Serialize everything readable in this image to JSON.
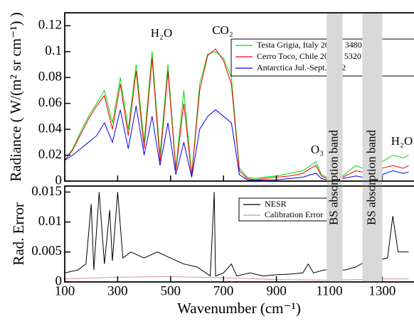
{
  "chart_data": [
    {
      "type": "line",
      "ylabel": "Radiance ( W/(m² sr cm⁻¹) )",
      "xlim": [
        100,
        1420
      ],
      "xticks": [
        100,
        300,
        500,
        700,
        900,
        1100,
        1300
      ],
      "ylim": [
        0,
        0.13
      ],
      "yticks": [
        0,
        0.02,
        0.04,
        0.06,
        0.08,
        0.1,
        0.12
      ],
      "annotations": [
        "H₂O",
        "CO₂",
        "O₃",
        "H₂O"
      ],
      "bands": [
        {
          "label": "BS absorption band",
          "range": [
            1090,
            1150
          ]
        },
        {
          "label": "BS absorption band",
          "range": [
            1225,
            1300
          ]
        }
      ],
      "x": [
        100,
        130,
        160,
        190,
        220,
        250,
        280,
        310,
        340,
        370,
        400,
        430,
        460,
        490,
        520,
        550,
        580,
        610,
        640,
        670,
        700,
        730,
        760,
        790,
        820,
        850,
        900,
        950,
        1000,
        1030,
        1050,
        1070,
        1090,
        1150,
        1200,
        1225,
        1300,
        1340,
        1380,
        1400
      ],
      "series": [
        {
          "name": "Testa Grigia, Italy 2007 - 3480 m",
          "color": "#00dd00",
          "values": [
            0.016,
            0.025,
            0.038,
            0.05,
            0.06,
            0.07,
            0.045,
            0.08,
            0.04,
            0.09,
            0.03,
            0.1,
            0.02,
            0.09,
            0.01,
            0.07,
            0.005,
            0.075,
            0.098,
            0.1,
            0.095,
            0.08,
            0.01,
            0.003,
            0.002,
            0.003,
            0.004,
            0.006,
            0.008,
            0.012,
            0.015,
            0.005,
            0.003,
            0.004,
            0.012,
            0.01,
            0.015,
            0.02,
            0.018,
            0.02
          ]
        },
        {
          "name": "Cerro Toco, Chile 2009 - 5320 m",
          "color": "#ee0000",
          "values": [
            0.016,
            0.024,
            0.036,
            0.048,
            0.058,
            0.066,
            0.04,
            0.075,
            0.035,
            0.085,
            0.025,
            0.095,
            0.015,
            0.085,
            0.008,
            0.06,
            0.004,
            0.07,
            0.097,
            0.102,
            0.093,
            0.075,
            0.008,
            0.002,
            0.001,
            0.002,
            0.003,
            0.004,
            0.006,
            0.01,
            0.012,
            0.004,
            0.002,
            0.003,
            0.008,
            0.007,
            0.01,
            0.012,
            0.01,
            0.012
          ]
        },
        {
          "name": "Antarctica Jul.-Sept. 2012",
          "color": "#0000ee",
          "values": [
            0.016,
            0.02,
            0.025,
            0.03,
            0.035,
            0.045,
            0.03,
            0.055,
            0.025,
            0.058,
            0.02,
            0.05,
            0.012,
            0.045,
            0.005,
            0.03,
            0.003,
            0.04,
            0.05,
            0.055,
            0.05,
            0.045,
            0.005,
            0.001,
            0.0005,
            0.001,
            0.001,
            0.002,
            0.003,
            0.005,
            0.006,
            0.002,
            0.001,
            0.002,
            0.004,
            0.003,
            0.005,
            0.008,
            0.006,
            0.007
          ]
        }
      ]
    },
    {
      "type": "line",
      "ylabel": "Rad. Error",
      "xlabel": "Wavenumber (cm⁻¹)",
      "xlim": [
        100,
        1420
      ],
      "xticks": [
        100,
        300,
        500,
        700,
        900,
        1100,
        1300
      ],
      "ylim": [
        0,
        0.016
      ],
      "yticks": [
        0,
        0.005,
        0.01,
        0.015
      ],
      "series": [
        {
          "name": "NESR",
          "color": "#000000",
          "x": [
            100,
            150,
            180,
            200,
            210,
            230,
            250,
            270,
            280,
            300,
            320,
            350,
            400,
            450,
            500,
            550,
            600,
            650,
            665,
            670,
            700,
            730,
            750,
            800,
            850,
            900,
            950,
            1000,
            1020,
            1040,
            1080,
            1160,
            1200,
            1220,
            1320,
            1340,
            1360,
            1400
          ],
          "values": [
            0.0015,
            0.002,
            0.003,
            0.013,
            0.002,
            0.015,
            0.003,
            0.012,
            0.0035,
            0.015,
            0.004,
            0.005,
            0.004,
            0.005,
            0.004,
            0.003,
            0.0025,
            0.001,
            0.015,
            0.001,
            0.0015,
            0.003,
            0.001,
            0.0015,
            0.001,
            0.0012,
            0.0013,
            0.0015,
            0.003,
            0.0015,
            0.002,
            0.002,
            0.0025,
            0.003,
            0.004,
            0.011,
            0.005,
            0.005
          ]
        },
        {
          "name": "Calibration Error",
          "color": "#cc9999",
          "x": [
            100,
            300,
            500,
            700,
            900,
            1100,
            1300,
            1400
          ],
          "values": [
            0.0005,
            0.0008,
            0.0009,
            0.0007,
            0.0004,
            0.0003,
            0.0005,
            0.0005
          ]
        }
      ]
    }
  ]
}
